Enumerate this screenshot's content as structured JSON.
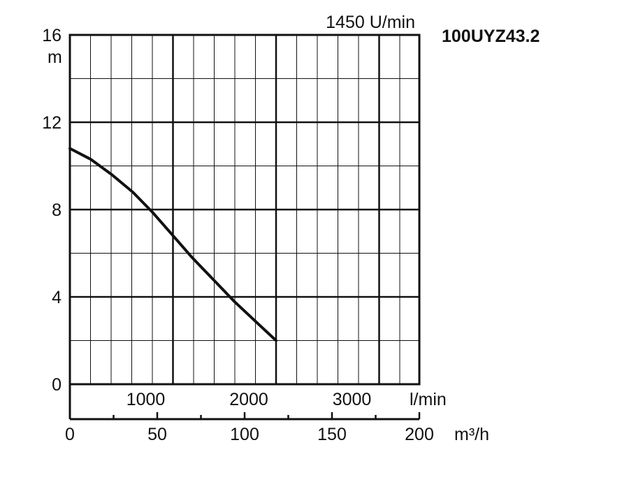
{
  "chart_data": {
    "type": "line",
    "model_label": "100UYZ43.2",
    "speed_label": "1450 U/min",
    "y_unit": "m",
    "lmin_unit": "l/min",
    "m3h_unit": "m³/h",
    "y_ticks": [
      0,
      4,
      8,
      12,
      16
    ],
    "y_tick_labels": [
      "0",
      "4",
      "8",
      "12",
      "16"
    ],
    "ylim": [
      0,
      16
    ],
    "lmin_ticks": [
      1000,
      2000,
      3000
    ],
    "lmin_tick_labels": [
      "1000",
      "2000",
      "3000"
    ],
    "m3h_ticks": [
      0,
      50,
      100,
      150,
      200
    ],
    "m3h_tick_labels": [
      "0",
      "50",
      "100",
      "150",
      "200"
    ],
    "xlim_m3h": [
      0,
      200
    ],
    "grid": true,
    "series": [
      {
        "x_m3h": [
          0,
          12,
          24,
          36,
          47,
          58,
          70,
          82,
          94,
          106,
          118
        ],
        "y": [
          10.8,
          10.3,
          9.6,
          8.8,
          7.9,
          6.9,
          5.8,
          4.8,
          3.8,
          2.9,
          2.0
        ]
      }
    ]
  }
}
